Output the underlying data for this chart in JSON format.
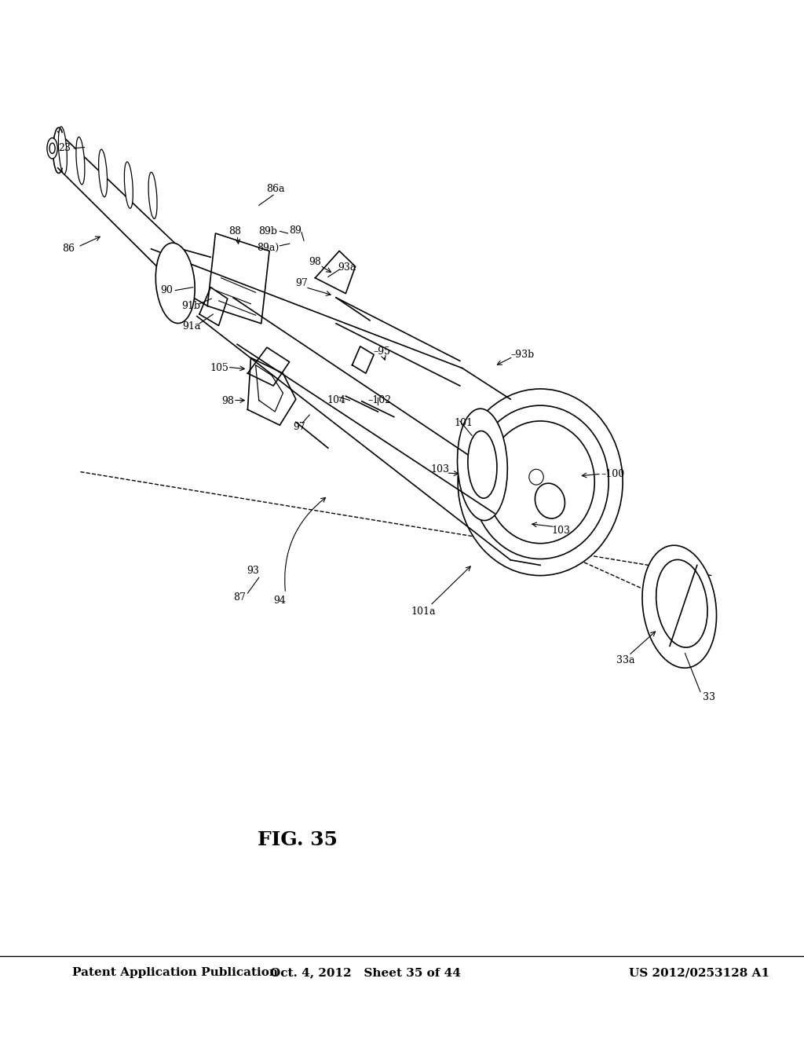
{
  "title": "FIG. 35",
  "header_left": "Patent Application Publication",
  "header_mid": "Oct. 4, 2012   Sheet 35 of 44",
  "header_right": "US 2012/0253128 A1",
  "bg_color": "#ffffff",
  "line_color": "#000000",
  "font_size_header": 11,
  "font_size_title": 18,
  "font_size_label": 9
}
